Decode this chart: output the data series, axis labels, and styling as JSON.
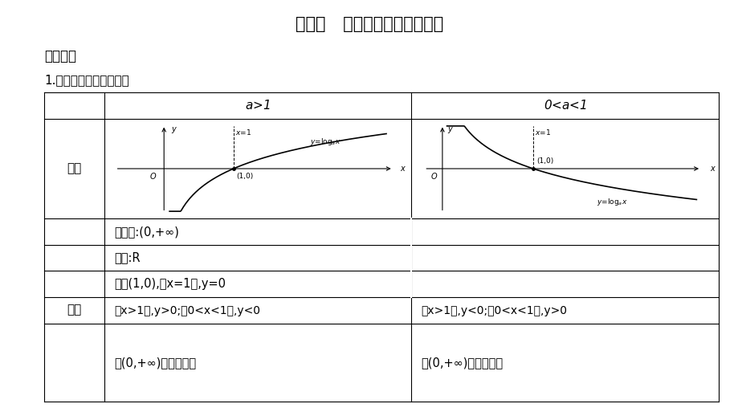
{
  "title": "考点二   对数函数的图象与性质",
  "subtitle": "考向基础",
  "section": "1.对数函数的图象与性质",
  "bg_color": "#ffffff",
  "title_fontsize": 15,
  "header_col1": "a>1",
  "header_col2": "0<a<1",
  "cell_tuxiang": "图象",
  "cell_xingzhi": "性质",
  "cell_dingyi": "定义域:(0,+∞)",
  "cell_zhiyu": "値域:R",
  "cell_guodian": "过点(1,0),即x=1时,y=0",
  "cell_r5_col1": "当x>1时,y>0;內0<x<1时,y<0",
  "cell_r5_col2": "当x>1时,y<0;內0<x<1时,y>0",
  "cell_r6_col1": "是(0,+∞)上的增函数",
  "cell_r6_col2": "是(0,+∞)上的减函数"
}
